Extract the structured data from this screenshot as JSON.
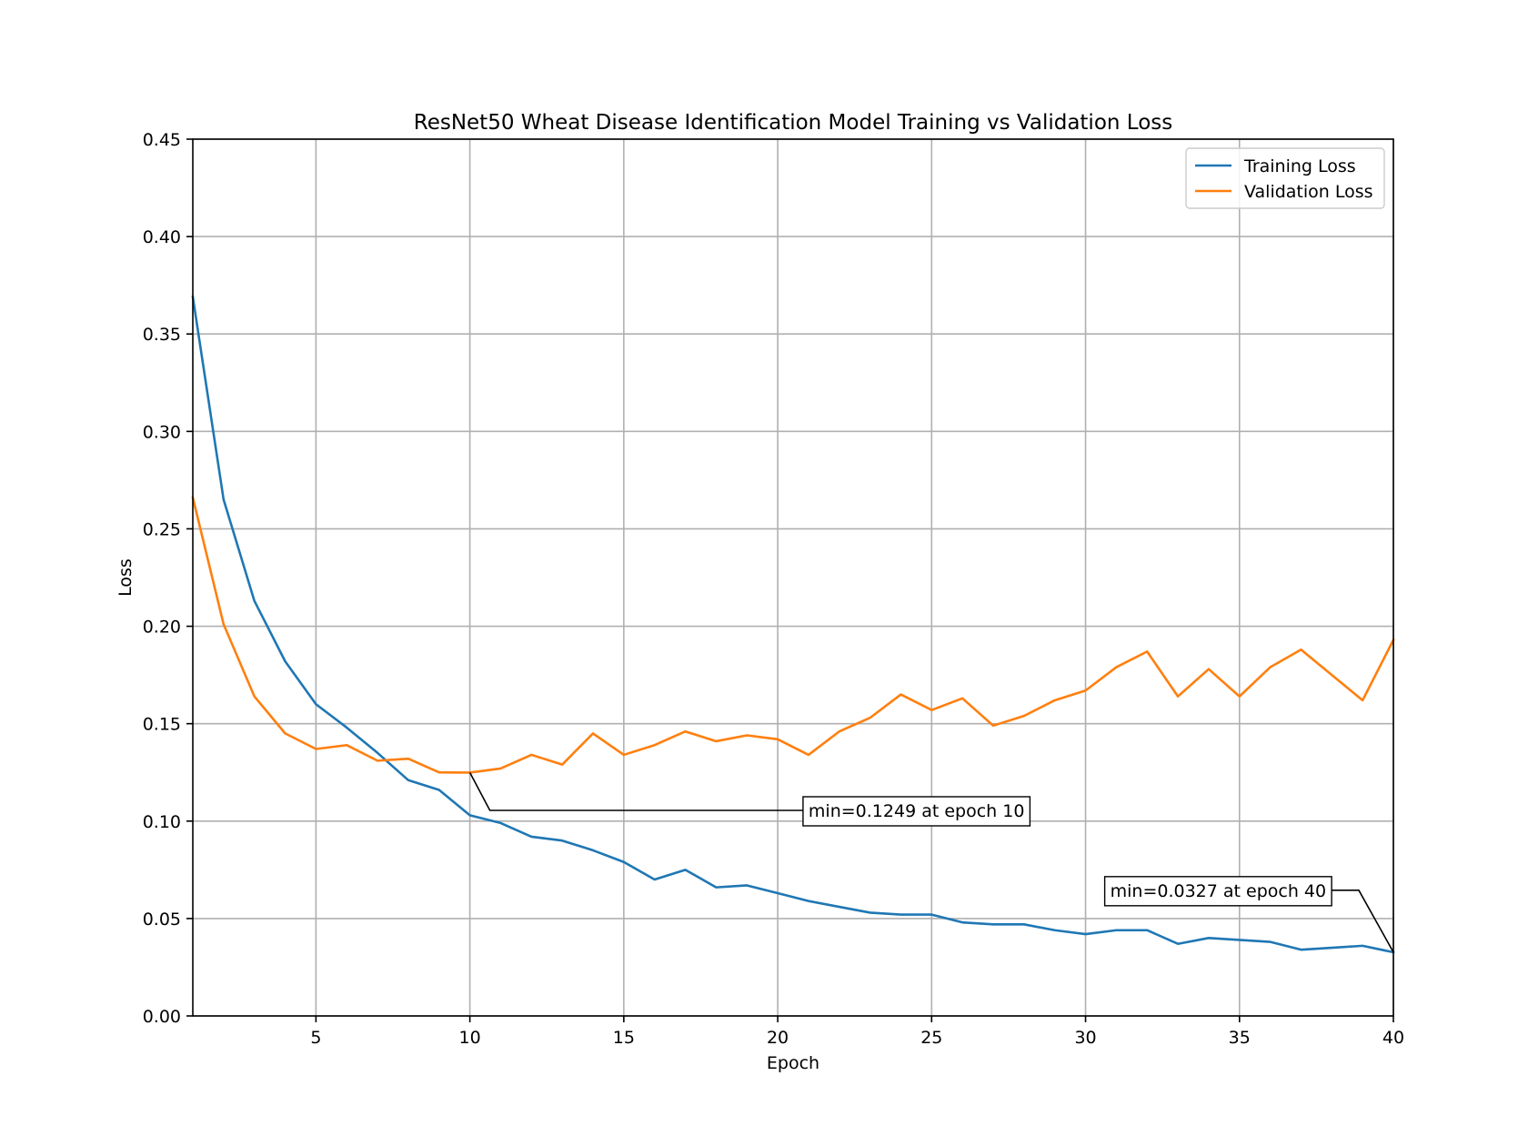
{
  "chart_data": {
    "type": "line",
    "title": "ResNet50 Wheat Disease Identification Model Training vs Validation Loss",
    "xlabel": "Epoch",
    "ylabel": "Loss",
    "xlim": [
      1,
      40
    ],
    "ylim": [
      0.0,
      0.45
    ],
    "xticks": [
      5,
      10,
      15,
      20,
      25,
      30,
      35,
      40
    ],
    "yticks": [
      "0.00",
      "0.05",
      "0.10",
      "0.15",
      "0.20",
      "0.25",
      "0.30",
      "0.35",
      "0.40",
      "0.45"
    ],
    "grid": true,
    "legend_position": "top-right",
    "x": [
      1,
      2,
      3,
      4,
      5,
      6,
      7,
      8,
      9,
      10,
      11,
      12,
      13,
      14,
      15,
      16,
      17,
      18,
      19,
      20,
      21,
      22,
      23,
      24,
      25,
      26,
      27,
      28,
      29,
      30,
      31,
      32,
      33,
      34,
      35,
      36,
      37,
      38,
      39,
      40
    ],
    "series": [
      {
        "name": "Training Loss",
        "color": "#1f77b4",
        "values": [
          0.369,
          0.265,
          0.213,
          0.182,
          0.16,
          0.148,
          0.135,
          0.121,
          0.116,
          0.103,
          0.099,
          0.092,
          0.09,
          0.085,
          0.079,
          0.07,
          0.075,
          0.066,
          0.067,
          0.063,
          0.059,
          0.056,
          0.053,
          0.052,
          0.052,
          0.048,
          0.047,
          0.047,
          0.044,
          0.042,
          0.044,
          0.044,
          0.037,
          0.04,
          0.039,
          0.038,
          0.034,
          0.035,
          0.036,
          0.0327
        ]
      },
      {
        "name": "Validation Loss",
        "color": "#ff7f0e",
        "values": [
          0.266,
          0.201,
          0.164,
          0.145,
          0.137,
          0.139,
          0.131,
          0.132,
          0.125,
          0.1249,
          0.127,
          0.134,
          0.129,
          0.145,
          0.134,
          0.139,
          0.146,
          0.141,
          0.144,
          0.142,
          0.134,
          0.146,
          0.153,
          0.165,
          0.157,
          0.163,
          0.149,
          0.154,
          0.162,
          0.167,
          0.179,
          0.187,
          0.164,
          0.178,
          0.164,
          0.179,
          0.188,
          0.175,
          0.162,
          0.193
        ]
      }
    ],
    "annotations": [
      {
        "text": "min=0.1249 at epoch 10",
        "x": 10,
        "y": 0.1249,
        "text_x": 21,
        "text_y": 0.1055
      },
      {
        "text": "min=0.0327 at epoch 40",
        "x": 40,
        "y": 0.0327,
        "text_x": 30.8,
        "text_y": 0.0645
      }
    ]
  }
}
